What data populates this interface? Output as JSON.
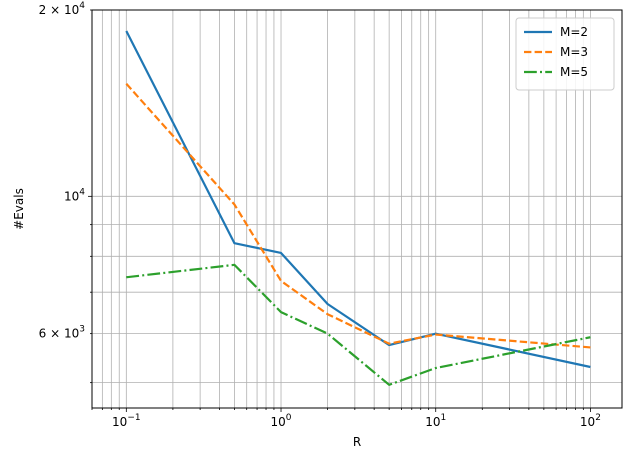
{
  "chart_data": {
    "type": "line",
    "xlabel": "R",
    "ylabel": "#Evals",
    "x_scale": "log",
    "y_scale": "log",
    "xlim": [
      0.06,
      160
    ],
    "ylim": [
      4550,
      20000
    ],
    "grid": {
      "major": true,
      "minor": true
    },
    "x_ticks": [
      {
        "value": 0.1,
        "base": "10",
        "exp": "−1"
      },
      {
        "value": 1,
        "base": "10",
        "exp": "0"
      },
      {
        "value": 10,
        "base": "10",
        "exp": "1"
      },
      {
        "value": 100,
        "base": "10",
        "exp": "2"
      }
    ],
    "y_ticks": [
      {
        "value": 20000,
        "mant": "2 × 10",
        "exp": "4"
      },
      {
        "value": 10000,
        "mant": "10",
        "exp": "4"
      },
      {
        "value": 6000,
        "mant": "6 × 10",
        "exp": "3"
      }
    ],
    "x": [
      0.1,
      0.5,
      1,
      2,
      5,
      10,
      100
    ],
    "series": [
      {
        "name": "M=2",
        "color": "#1f77b4",
        "dash": "solid",
        "values": [
          18500,
          8400,
          8100,
          6700,
          5750,
          6000,
          5300
        ]
      },
      {
        "name": "M=3",
        "color": "#ff7f0e",
        "dash": "dashed",
        "values": [
          15200,
          9700,
          7300,
          6450,
          5780,
          5980,
          5700
        ]
      },
      {
        "name": "M=5",
        "color": "#2ca02c",
        "dash": "dashdot",
        "values": [
          7400,
          7750,
          6500,
          6000,
          4960,
          5280,
          5920
        ]
      }
    ],
    "legend_position": "top-right"
  }
}
